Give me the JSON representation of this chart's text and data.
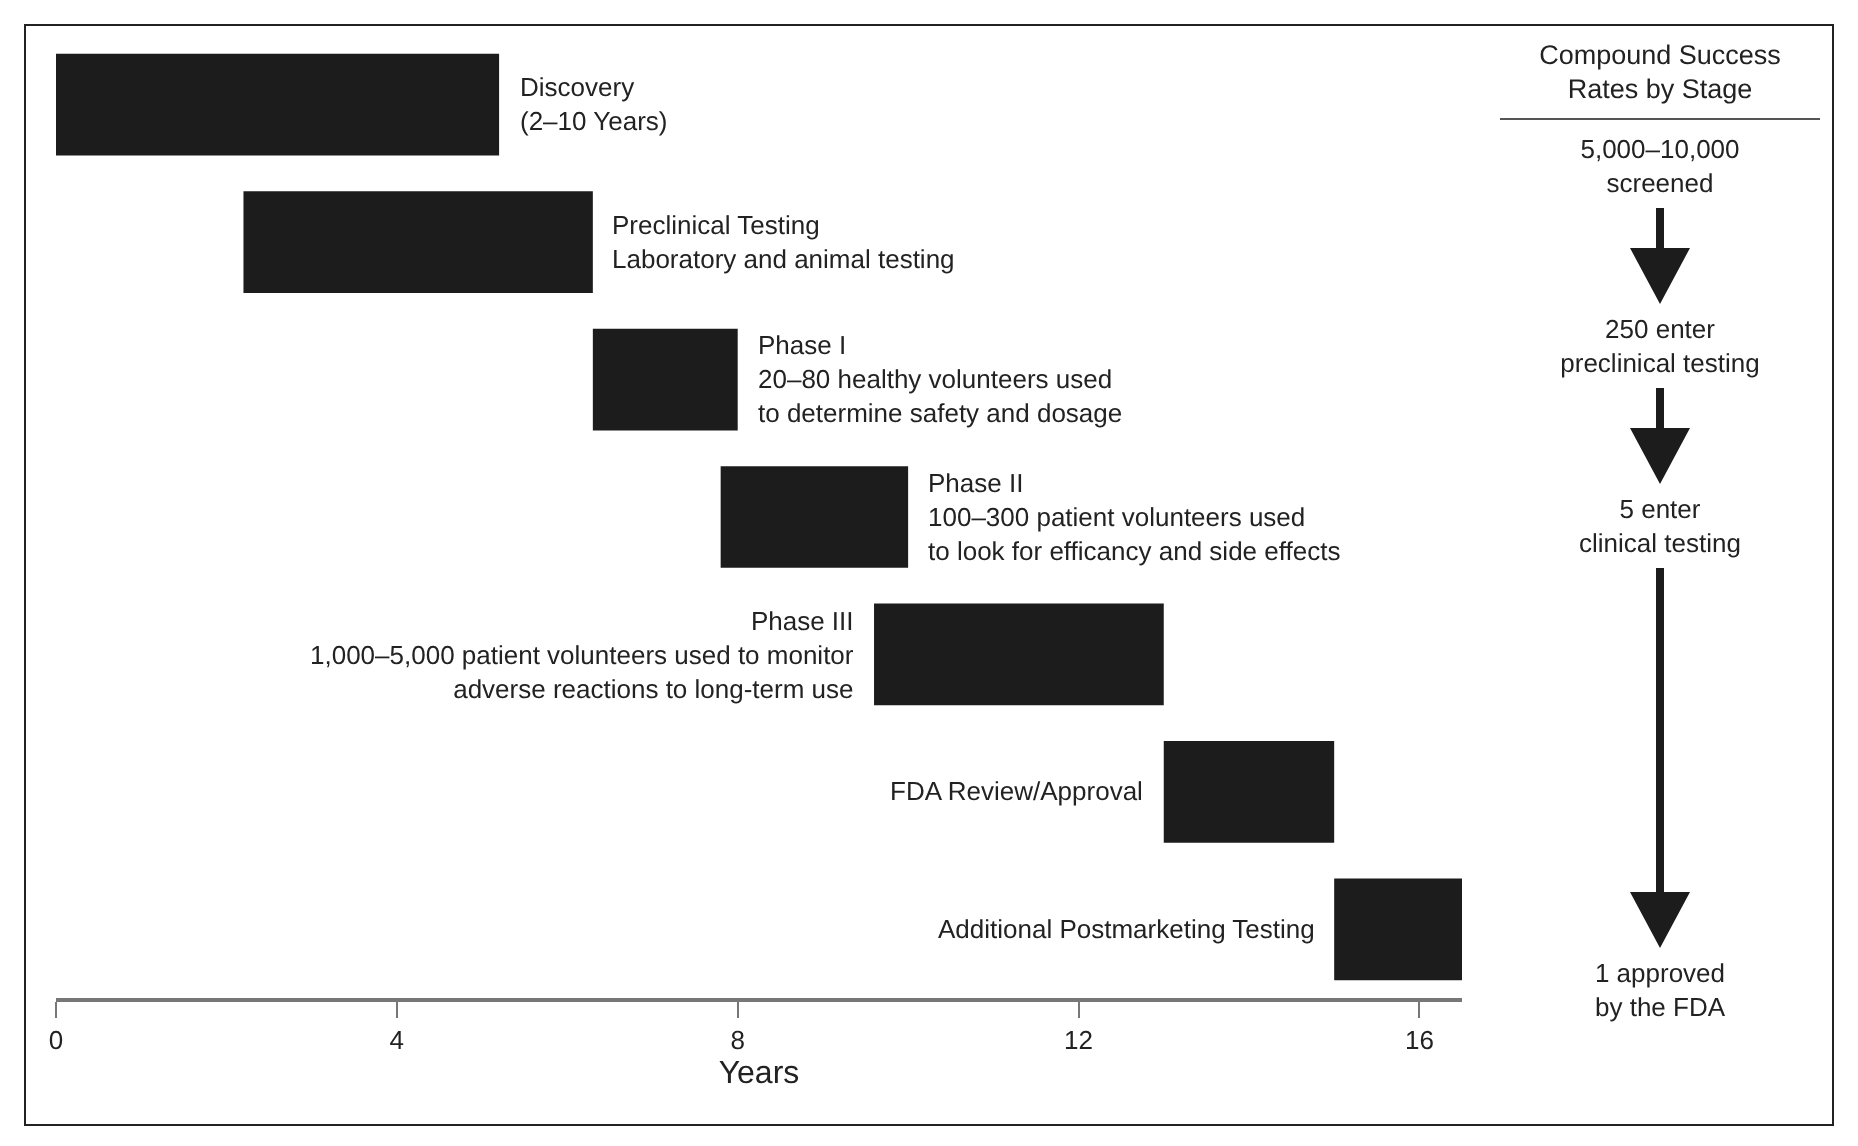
{
  "chart_data": {
    "type": "bar",
    "orientation": "horizontal",
    "xlabel": "Years",
    "categories": [
      "Discovery\n(2–10 Years)",
      "Preclinical Testing\nLaboratory and animal testing",
      "Phase I\n20–80 healthy volunteers used\nto determine safety and dosage",
      "Phase II\n100–300 patient volunteers used\nto look for efficancy and side effects",
      "Phase III\n1,000–5,000 patient volunteers used to monitor\nadverse reactions to long-term use",
      "FDA Review/Approval",
      "Additional Postmarketing Testing"
    ],
    "base": [
      0,
      2.2,
      6.3,
      7.8,
      9.6,
      13.0,
      15.0
    ],
    "values": [
      5.2,
      4.1,
      1.7,
      2.2,
      3.4,
      2.0,
      1.5
    ],
    "color": "#1c1c1c",
    "xlim": [
      0,
      16.5
    ],
    "xticks": [
      0,
      4,
      8,
      12,
      16
    ],
    "tick_labels": "x",
    "annotations": [
      "Compound Success\nRates by Stage",
      "5,000–10,000\nscreened",
      "250 enter\npreclinical testing",
      "5 enter\nclinical testing",
      "1 approved\nby the FDA"
    ]
  }
}
